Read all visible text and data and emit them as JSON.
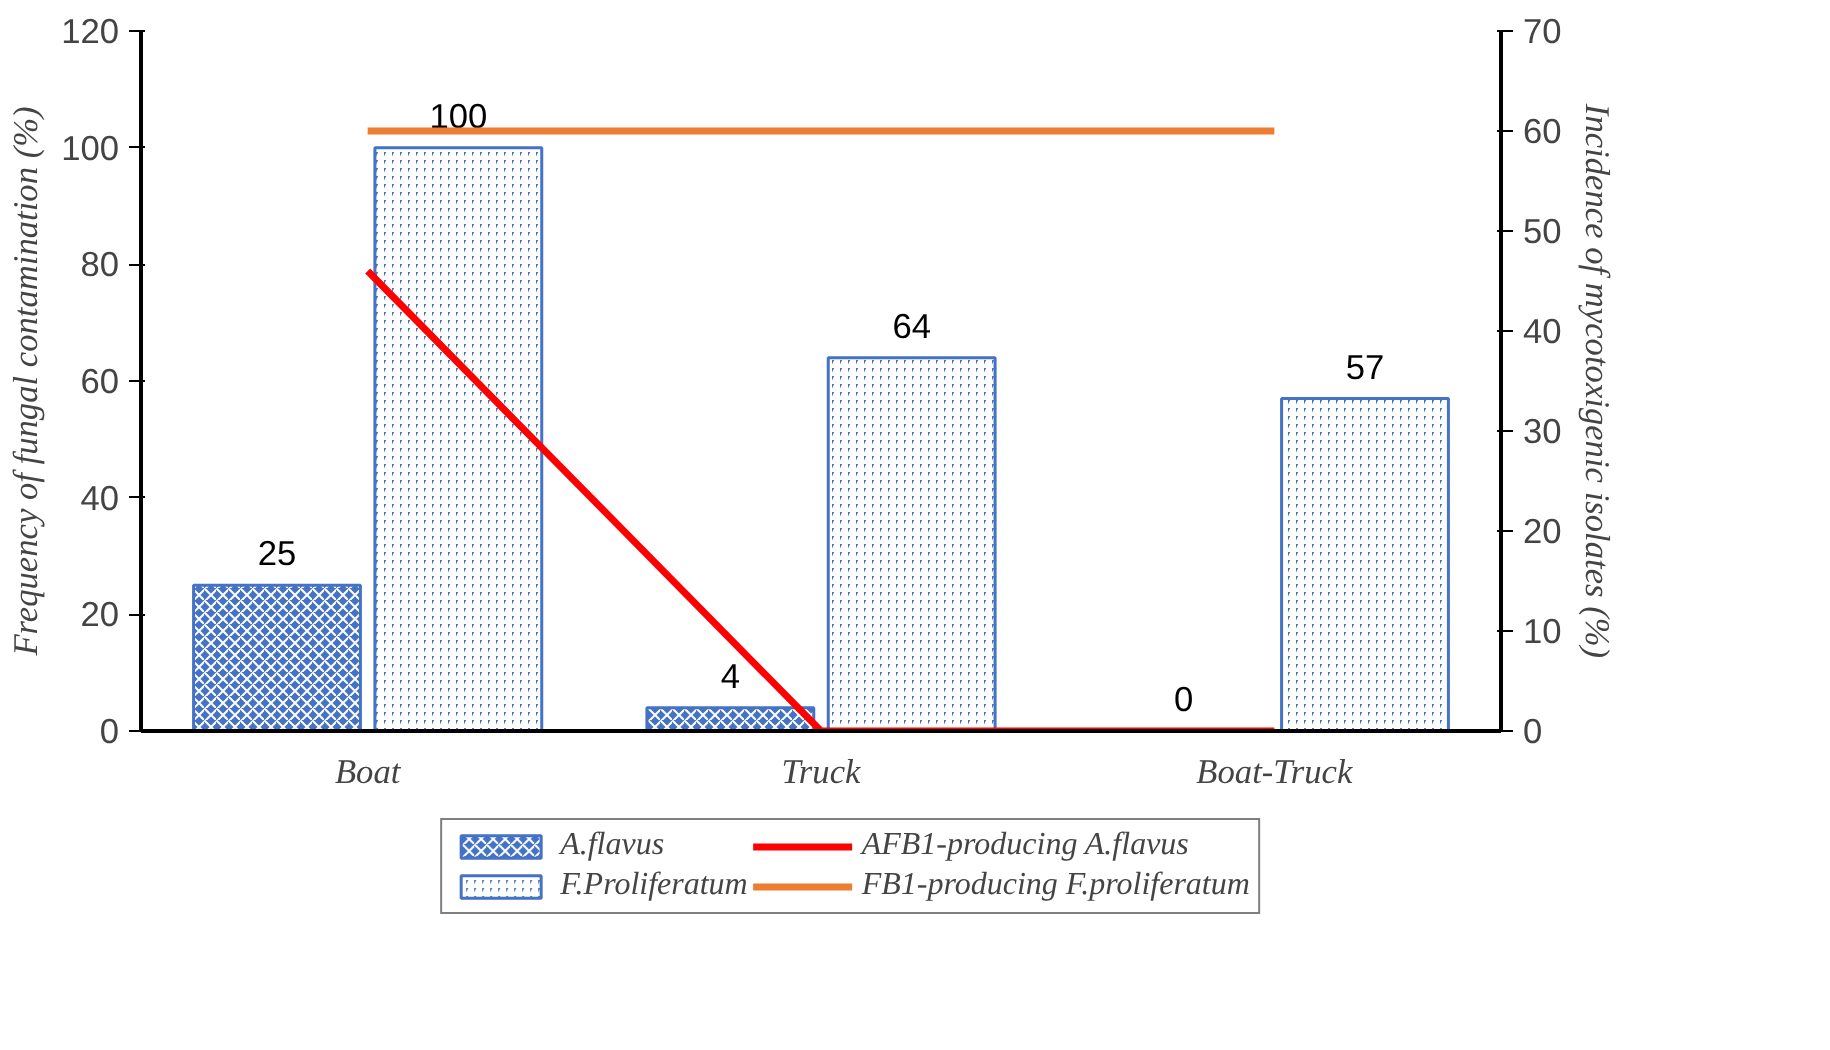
{
  "chart_data": {
    "type": "bar",
    "ylabel": "Frequency of fungal contamination (%)",
    "y2label": "Incidence of mycotoxigenic isolates (%)",
    "categories": [
      "Boat",
      "Truck",
      "Boat-Truck"
    ],
    "series": [
      {
        "name": "A.flavus",
        "color": "#4472c4",
        "values": [
          25,
          4,
          0
        ],
        "value_labels": [
          "25",
          "4",
          "0"
        ]
      },
      {
        "name": "F.Proliferatum",
        "color": "#4472c4",
        "values": [
          100,
          64,
          57
        ],
        "value_labels": [
          "100",
          "64",
          "57"
        ]
      },
      {
        "name": "AFB1-producing A.flavus",
        "type": "line",
        "axis": "y2",
        "color": "#ff0000",
        "values": [
          46,
          0,
          0
        ]
      },
      {
        "name": "FB1-producing F.proliferatum",
        "type": "line",
        "axis": "y2",
        "color": "#ed7d31",
        "values": [
          60,
          60,
          60
        ]
      }
    ],
    "ylim": [
      0,
      120
    ],
    "yticks": [
      0,
      20,
      40,
      60,
      80,
      100,
      120
    ],
    "y2lim": [
      0,
      70
    ],
    "y2ticks": [
      0,
      10,
      20,
      30,
      40,
      50,
      60,
      70
    ],
    "grid": false,
    "legend": "bottom"
  }
}
